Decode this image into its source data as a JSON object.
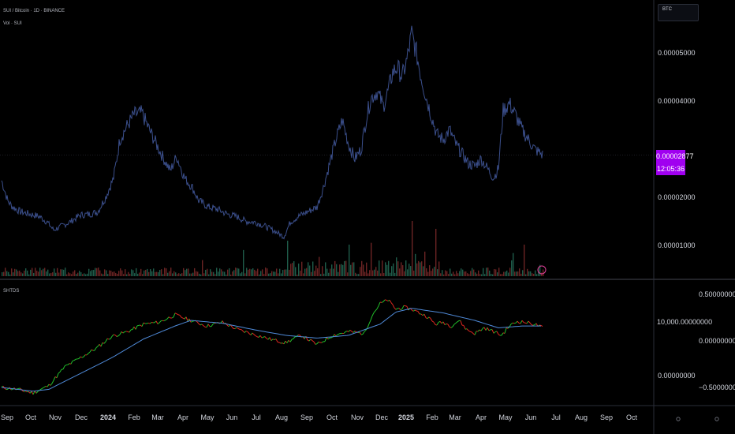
{
  "header": {
    "symbol_line": "SUI / Bitcoin · 1D · BINANCE",
    "volume_line": "Vol · SUI"
  },
  "currency_button": {
    "label": "BTC"
  },
  "price_badge": {
    "price": "0.00002877",
    "countdown": "12:05:36"
  },
  "indicator": {
    "name": "SHTDS",
    "mid_label": "10,000.00000000"
  },
  "colors": {
    "background": "#000000",
    "price_line": "#3b4f8c",
    "volume_up": "#1f5c4a",
    "volume_down": "#6b2424",
    "indicator_up": "#22c02a",
    "indicator_down": "#e0271f",
    "indicator_ma": "#4f8ad8",
    "badge": "#a000f0",
    "grid": "#1c1f28"
  },
  "icons": [
    "settings-icon",
    "scroll-reset-icon"
  ],
  "chart_data": [
    {
      "type": "line",
      "title": "",
      "series": [
        {
          "values": [
            [
              0,
              2.35e-05
            ],
            [
              8,
              1.92e-05
            ],
            [
              14,
              1.8e-05
            ],
            [
              24,
              1.7e-05
            ],
            [
              36,
              1.65e-05
            ],
            [
              48,
              1.6e-05
            ],
            [
              58,
              1.48e-05
            ],
            [
              66,
              1.32e-05
            ],
            [
              76,
              1.4e-05
            ],
            [
              88,
              1.5e-05
            ],
            [
              100,
              1.63e-05
            ],
            [
              112,
              1.65e-05
            ],
            [
              122,
              1.7e-05
            ],
            [
              132,
              2e-05
            ],
            [
              142,
              2.4e-05
            ],
            [
              150,
              3.2e-05
            ],
            [
              158,
              3.45e-05
            ],
            [
              168,
              3.72e-05
            ],
            [
              178,
              3.75e-05
            ],
            [
              186,
              3.45e-05
            ],
            [
              194,
              3.18e-05
            ],
            [
              204,
              2.85e-05
            ],
            [
              214,
              2.55e-05
            ],
            [
              222,
              2.85e-05
            ],
            [
              232,
              2.4e-05
            ],
            [
              242,
              2.2e-05
            ],
            [
              250,
              1.93e-05
            ],
            [
              262,
              1.8e-05
            ],
            [
              274,
              1.75e-05
            ],
            [
              286,
              1.65e-05
            ],
            [
              298,
              1.6e-05
            ],
            [
              310,
              1.5e-05
            ],
            [
              322,
              1.48e-05
            ],
            [
              334,
              1.4e-05
            ],
            [
              346,
              1.3e-05
            ],
            [
              358,
              1.18e-05
            ],
            [
              366,
              1.48e-05
            ],
            [
              376,
              1.6e-05
            ],
            [
              388,
              1.7e-05
            ],
            [
              400,
              1.8e-05
            ],
            [
              408,
              2.2e-05
            ],
            [
              416,
              2.7e-05
            ],
            [
              424,
              3.2e-05
            ],
            [
              432,
              3.6e-05
            ],
            [
              440,
              3.1e-05
            ],
            [
              448,
              2.8e-05
            ],
            [
              456,
              3e-05
            ],
            [
              462,
              3.6e-05
            ],
            [
              468,
              4.05e-05
            ],
            [
              476,
              4.2e-05
            ],
            [
              484,
              3.9e-05
            ],
            [
              490,
              4.2e-05
            ],
            [
              496,
              4.6e-05
            ],
            [
              502,
              4.7e-05
            ],
            [
              508,
              4.5e-05
            ],
            [
              514,
              4.85e-05
            ],
            [
              520,
              5.4e-05
            ],
            [
              526,
              5e-05
            ],
            [
              532,
              4.5e-05
            ],
            [
              538,
              4.1e-05
            ],
            [
              544,
              3.75e-05
            ],
            [
              552,
              3.3e-05
            ],
            [
              560,
              3.2e-05
            ],
            [
              568,
              3.4e-05
            ],
            [
              576,
              3.1e-05
            ],
            [
              584,
              2.9e-05
            ],
            [
              592,
              2.7e-05
            ],
            [
              600,
              2.65e-05
            ],
            [
              608,
              2.8e-05
            ],
            [
              616,
              2.6e-05
            ],
            [
              624,
              2.4e-05
            ],
            [
              630,
              2.6e-05
            ],
            [
              636,
              3.8e-05
            ],
            [
              644,
              3.95e-05
            ],
            [
              652,
              3.7e-05
            ],
            [
              660,
              3.4e-05
            ],
            [
              668,
              3.2e-05
            ],
            [
              676,
              3e-05
            ],
            [
              686,
              2.88e-05
            ]
          ]
        }
      ]
    },
    {
      "type": "line",
      "series": [
        {
          "name": "",
          "values": [
            [
              0,
              -0.5
            ],
            [
              20,
              -0.52
            ],
            [
              40,
              -0.56
            ],
            [
              60,
              -0.48
            ],
            [
              80,
              -0.28
            ],
            [
              100,
              -0.18
            ],
            [
              120,
              -0.08
            ],
            [
              140,
              0.05
            ],
            [
              160,
              0.1
            ],
            [
              180,
              0.18
            ],
            [
              200,
              0.2
            ],
            [
              220,
              0.28
            ],
            [
              240,
              0.22
            ],
            [
              260,
              0.16
            ],
            [
              280,
              0.2
            ],
            [
              300,
              0.12
            ],
            [
              320,
              0.07
            ],
            [
              340,
              0.02
            ],
            [
              360,
              -0.02
            ],
            [
              380,
              0.06
            ],
            [
              400,
              -0.04
            ],
            [
              420,
              0.06
            ],
            [
              440,
              0.1
            ],
            [
              460,
              0.08
            ],
            [
              470,
              0.28
            ],
            [
              480,
              0.4
            ],
            [
              490,
              0.44
            ],
            [
              500,
              0.34
            ],
            [
              510,
              0.36
            ],
            [
              520,
              0.34
            ],
            [
              530,
              0.3
            ],
            [
              540,
              0.26
            ],
            [
              550,
              0.18
            ],
            [
              560,
              0.2
            ],
            [
              570,
              0.16
            ],
            [
              580,
              0.22
            ],
            [
              590,
              0.12
            ],
            [
              600,
              0.08
            ],
            [
              612,
              0.14
            ],
            [
              624,
              0.1
            ],
            [
              634,
              0.06
            ],
            [
              644,
              0.16
            ],
            [
              654,
              0.21
            ],
            [
              664,
              0.2
            ],
            [
              676,
              0.18
            ],
            [
              686,
              0.14
            ]
          ]
        },
        {
          "name": "",
          "values": [
            [
              0,
              -0.5
            ],
            [
              40,
              -0.54
            ],
            [
              60,
              -0.52
            ],
            [
              100,
              -0.35
            ],
            [
              140,
              -0.18
            ],
            [
              180,
              0.02
            ],
            [
              220,
              0.16
            ],
            [
              240,
              0.22
            ],
            [
              280,
              0.19
            ],
            [
              320,
              0.12
            ],
            [
              360,
              0.06
            ],
            [
              400,
              0.03
            ],
            [
              440,
              0.06
            ],
            [
              480,
              0.18
            ],
            [
              500,
              0.31
            ],
            [
              520,
              0.35
            ],
            [
              560,
              0.3
            ],
            [
              600,
              0.22
            ],
            [
              630,
              0.14
            ],
            [
              660,
              0.16
            ],
            [
              686,
              0.16
            ]
          ]
        }
      ]
    }
  ],
  "price_axis": {
    "ticks": [
      "0.00005000",
      "0.00004000",
      "0.00002000",
      "0.00001000"
    ],
    "values": [
      5e-05,
      4e-05,
      2e-05,
      1e-05
    ]
  },
  "indicator_axis": {
    "ticks": [
      "0.50000000",
      "0.00000000",
      "−0.50000000"
    ],
    "values": [
      0.5,
      0.0,
      -0.5
    ],
    "left_ticks": [
      "0.00000000"
    ]
  },
  "time_axis": {
    "labels": [
      "Sep",
      "Oct",
      "Nov",
      "Dec",
      "2024",
      "Feb",
      "Mar",
      "Apr",
      "May",
      "Jun",
      "Jul",
      "Aug",
      "Sep",
      "Oct",
      "Nov",
      "Dec",
      "2025",
      "Feb",
      "Mar",
      "Apr",
      "May",
      "Jun",
      "Jul",
      "Aug",
      "Sep",
      "Oct"
    ],
    "bold": [
      "2024",
      "2025"
    ]
  }
}
